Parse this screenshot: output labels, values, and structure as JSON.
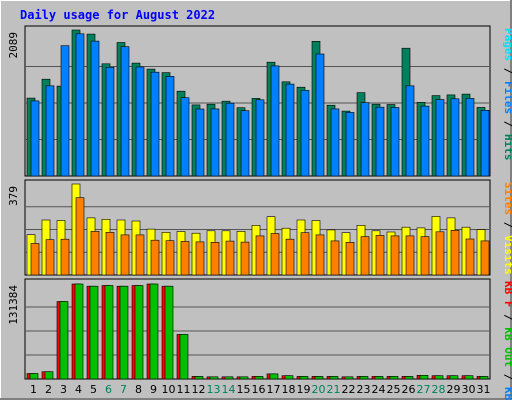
{
  "chart_data": {
    "type": "bar",
    "title": "Daily usage for August 2022",
    "categories": [
      "1",
      "2",
      "3",
      "4",
      "5",
      "6",
      "7",
      "8",
      "9",
      "10",
      "11",
      "12",
      "13",
      "14",
      "15",
      "16",
      "17",
      "18",
      "19",
      "20",
      "21",
      "22",
      "23",
      "24",
      "25",
      "26",
      "27",
      "28",
      "29",
      "30",
      "31"
    ],
    "weekend_days": [
      "6",
      "7",
      "13",
      "14",
      "20",
      "21",
      "27",
      "28"
    ],
    "panels": [
      {
        "name": "hits",
        "scale_label": "2089",
        "ylim": [
          0,
          2089
        ],
        "side_labels": [
          "Hits",
          "Files",
          "Pages"
        ],
        "side_separator": " / ",
        "series": [
          {
            "name": "Hits",
            "color": "#00805c",
            "values": [
              1115,
              1385,
              1287,
              2089,
              2030,
              1605,
              1910,
              1615,
              1530,
              1480,
              1213,
              1018,
              1028,
              1070,
              977,
              1110,
              1628,
              1348,
              1271,
              1928,
              1013,
              928,
              1193,
              1028,
              1023,
              1828,
              1055,
              1150,
              1160,
              1172,
              982
            ]
          },
          {
            "name": "Files",
            "color": "#0080ff",
            "values": [
              1075,
              1290,
              1865,
              2035,
              1930,
              1555,
              1850,
              1560,
              1485,
              1425,
              1120,
              958,
              960,
              1042,
              935,
              1090,
              1575,
              1315,
              1225,
              1745,
              960,
              910,
              1050,
              985,
              980,
              1290,
              1000,
              1095,
              1105,
              1110,
              940
            ]
          },
          {
            "name": "Pages",
            "color": "#00e0ff",
            "values": [
              1075,
              1290,
              1865,
              2035,
              1930,
              1555,
              1850,
              1560,
              1485,
              1425,
              1120,
              958,
              960,
              1042,
              935,
              1090,
              1575,
              1315,
              1225,
              1745,
              960,
              910,
              1050,
              985,
              980,
              1290,
              1000,
              1095,
              1105,
              1110,
              940
            ]
          }
        ]
      },
      {
        "name": "visits",
        "scale_label": "379",
        "ylim": [
          0,
          379
        ],
        "side_labels": [
          "Visits",
          "Sites"
        ],
        "side_separator": " / ",
        "series": [
          {
            "name": "Visits",
            "color": "#ffff00",
            "values": [
              168,
              229,
              227,
              379,
              238,
              232,
              229,
              225,
              191,
              178,
              181,
              174,
              184,
              184,
              182,
              207,
              243,
              195,
              229,
              227,
              188,
              176,
              207,
              184,
              179,
              199,
              196,
              244,
              238,
              199,
              189
            ]
          },
          {
            "name": "Sites",
            "color": "#ff8000",
            "values": [
              131,
              147,
              149,
              322,
              182,
              178,
              167,
              167,
              145,
              143,
              140,
              138,
              136,
              141,
              137,
              163,
              173,
              149,
              176,
              167,
              142,
              136,
              160,
              165,
              163,
              163,
              160,
              180,
              186,
              150,
              142
            ]
          }
        ]
      },
      {
        "name": "kbytes",
        "scale_label": "131384",
        "ylim": [
          0,
          131384
        ],
        "side_labels": [
          "KBytes",
          "KB Out",
          "KB In"
        ],
        "side_separator": " / ",
        "series": [
          {
            "name": "KB F",
            "color": "#ff0000",
            "values": [
              7500,
              10000,
              106000,
              130000,
              127000,
              128000,
              127000,
              128000,
              130000,
              127000,
              61000,
              3500,
              3000,
              3000,
              3000,
              3500,
              7000,
              4500,
              3500,
              3500,
              3500,
              3000,
              3500,
              3500,
              3500,
              3500,
              5000,
              4500,
              4500,
              4500,
              3500
            ]
          },
          {
            "name": "KB In",
            "color": "#00c000",
            "values": [
              7500,
              10000,
              106000,
              130000,
              127000,
              128000,
              127000,
              128000,
              130000,
              127000,
              61000,
              3500,
              3000,
              3000,
              3000,
              3500,
              7000,
              4500,
              3500,
              3500,
              3500,
              3000,
              3500,
              3500,
              3500,
              3500,
              5000,
              4500,
              4500,
              4500,
              3500
            ]
          }
        ]
      }
    ],
    "side_label_kb": [
      "KB In",
      "KB Out",
      "KB F"
    ]
  },
  "colors": {
    "background": "#c0c0c0",
    "title": "#0000ff",
    "frame": "#000000",
    "grid": "#555555",
    "weekday_label": "#000000",
    "weekend_label": "#00805c"
  }
}
